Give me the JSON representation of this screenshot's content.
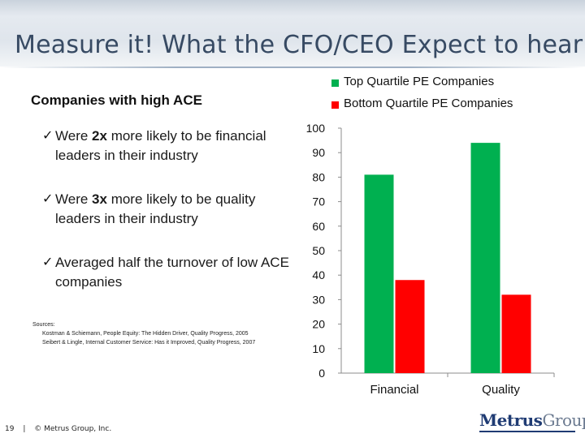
{
  "slide": {
    "title": "Measure it! What the CFO/CEO Expect to hear!"
  },
  "left": {
    "subhead": "Companies with high ACE",
    "bullets": [
      {
        "check": "✓",
        "text_before": "Were ",
        "emphasis": "2x",
        "text_after": " more likely to be financial leaders in their industry"
      },
      {
        "check": "✓",
        "text_before": "Were ",
        "emphasis": "3x",
        "text_after": " more likely to be quality leaders in their industry"
      },
      {
        "check": "✓",
        "text_before": "Averaged half the turnover of low ACE companies",
        "emphasis": "",
        "text_after": ""
      }
    ],
    "sources": {
      "head": "Sources:",
      "refs": [
        "Kostman & Schiemann, People Equity: The Hidden Driver, Quality Progress, 2005",
        "Seibert & Lingle, Internal Customer Service: Has it Improved, Quality Progress, 2007"
      ]
    }
  },
  "footer": {
    "page": "19",
    "sep": "|",
    "copyright": "© Metrus Group, Inc."
  },
  "logo": {
    "part1": "Metrus",
    "part2": "Group"
  },
  "chart_data": {
    "type": "bar",
    "categories": [
      "Financial",
      "Quality"
    ],
    "series": [
      {
        "name": "Top Quartile PE Companies",
        "values": [
          81,
          94
        ],
        "color": "#00b050"
      },
      {
        "name": "Bottom Quartile PE Companies",
        "values": [
          38,
          32
        ],
        "color": "#ff0000"
      }
    ],
    "ylim": [
      0,
      100
    ],
    "yticks": [
      0,
      10,
      20,
      30,
      40,
      50,
      60,
      70,
      80,
      90,
      100
    ],
    "legend_position": "top-right",
    "grid": false
  }
}
